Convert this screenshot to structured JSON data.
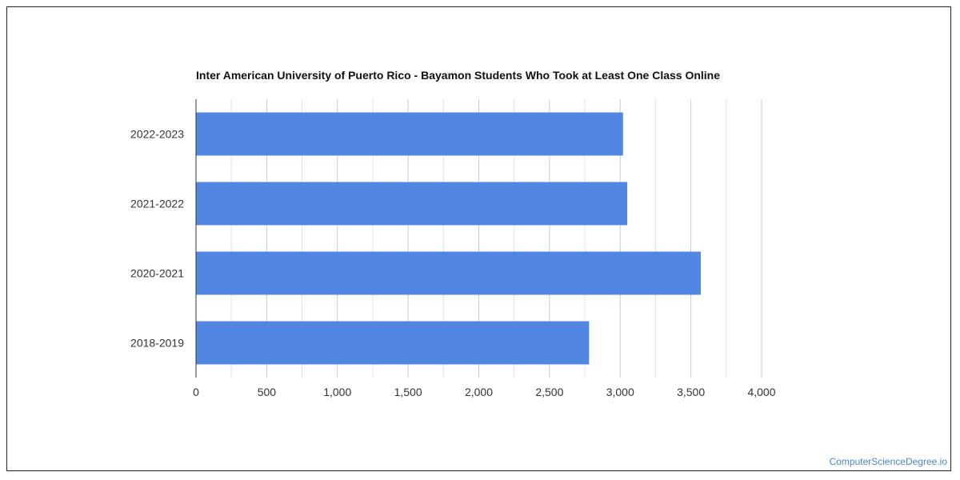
{
  "chart_data": {
    "type": "bar",
    "orientation": "horizontal",
    "title": "Inter American University of Puerto Rico - Bayamon Students Who Took at Least One Class Online",
    "categories": [
      "2022-2023",
      "2021-2022",
      "2020-2021",
      "2018-2019"
    ],
    "values": [
      3020,
      3050,
      3570,
      2780
    ],
    "xlabel": "",
    "ylabel": "",
    "xlim": [
      0,
      4000
    ],
    "x_ticks": [
      0,
      500,
      1000,
      1500,
      2000,
      2500,
      3000,
      3500,
      4000
    ],
    "x_tick_labels": [
      "0",
      "500",
      "1,000",
      "1,500",
      "2,000",
      "2,500",
      "3,000",
      "3,500",
      "4,000"
    ],
    "grid": true,
    "bar_color": "#5286e3"
  },
  "watermark": "ComputerScienceDegree.io"
}
